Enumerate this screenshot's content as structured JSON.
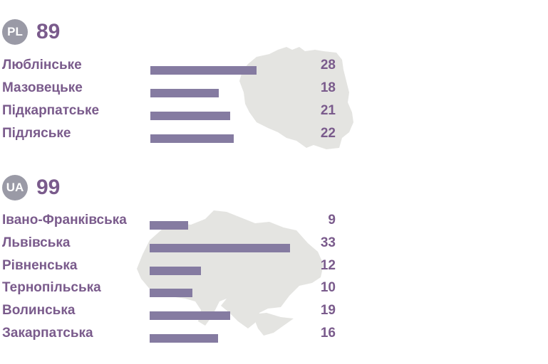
{
  "chart_data": [
    {
      "type": "bar",
      "badge": "PL",
      "total": "89",
      "categories": [
        "Люблінське",
        "Мазовецьке",
        "Підкарпатське",
        "Підляське"
      ],
      "values": [
        28,
        18,
        21,
        22
      ],
      "bar_color": "#857ba1",
      "map_color": "#e4e4e1",
      "map_icon": "poland-map-icon",
      "xlim": [
        0,
        28
      ]
    },
    {
      "type": "bar",
      "badge": "UA",
      "total": "99",
      "categories": [
        "Івано-Франківська",
        "Львівська",
        "Рівненська",
        "Тернопільська",
        "Волинська",
        "Закарпатська"
      ],
      "values": [
        9,
        33,
        12,
        10,
        19,
        16
      ],
      "bar_color": "#857ba1",
      "map_color": "#e4e4e1",
      "map_icon": "ukraine-map-icon",
      "xlim": [
        0,
        33
      ]
    }
  ]
}
